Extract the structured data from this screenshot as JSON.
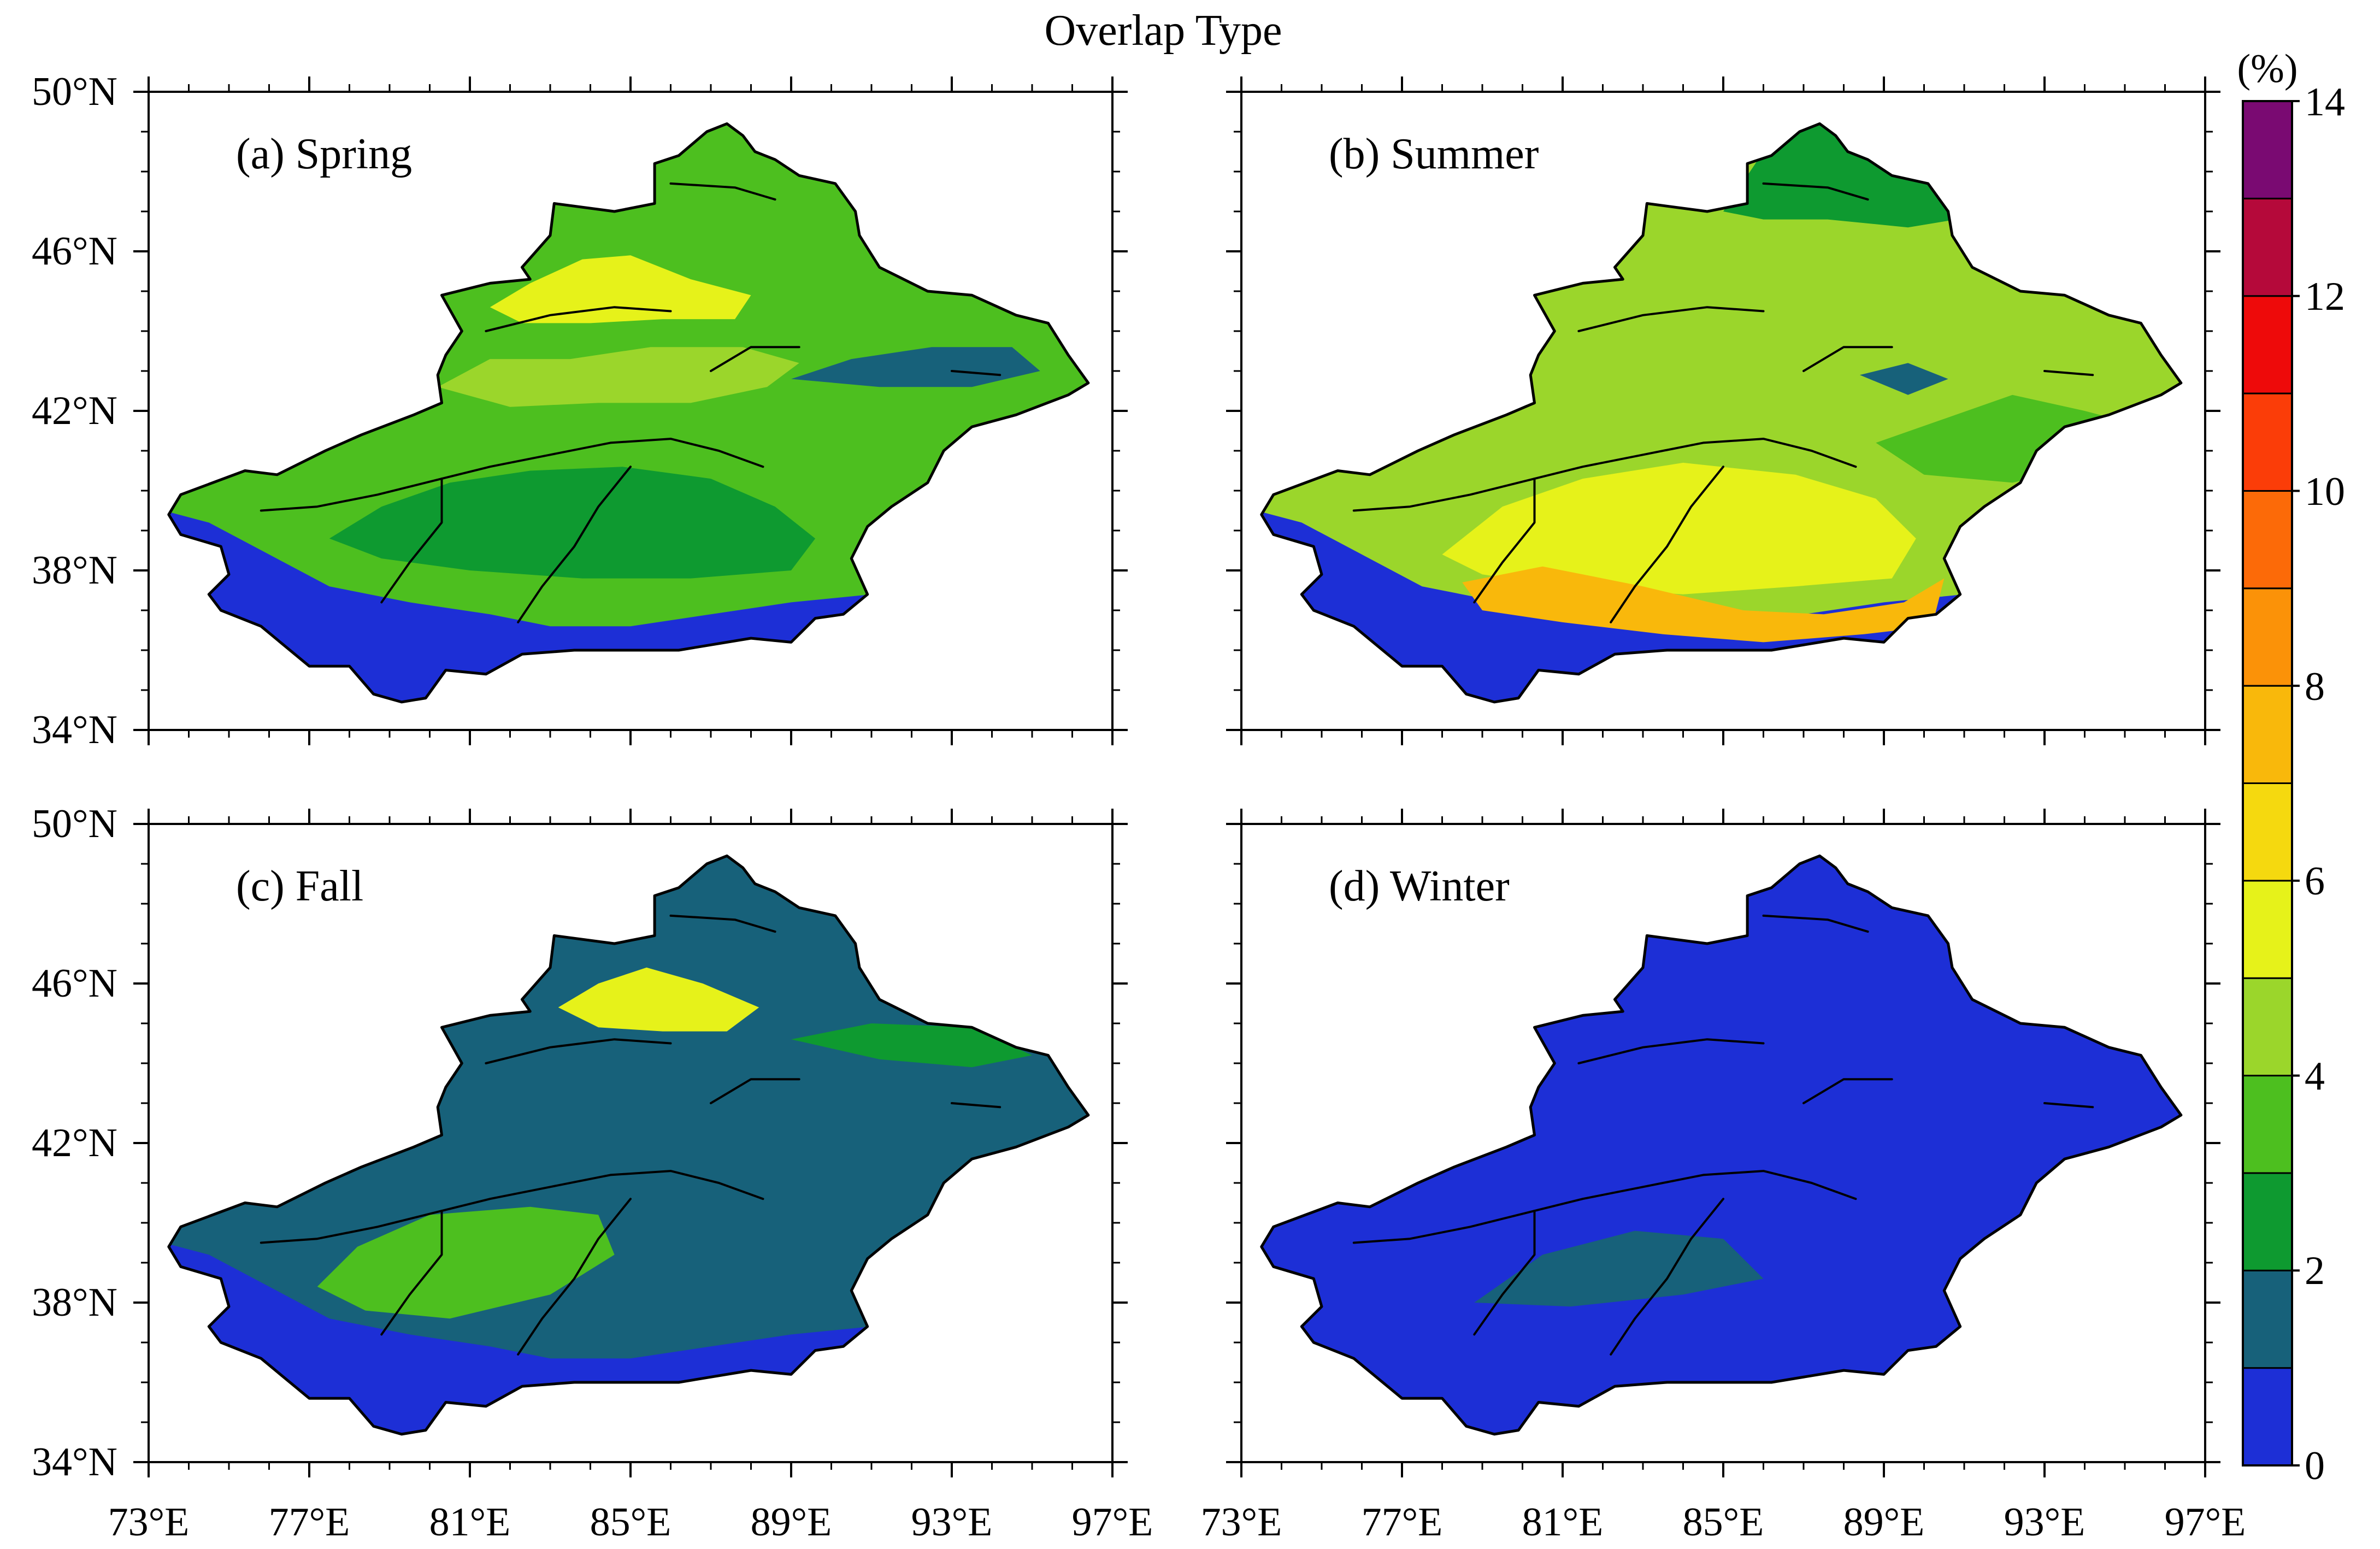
{
  "title": "Overlap Type",
  "panels": [
    {
      "id": "spring",
      "label": "(a) Spring"
    },
    {
      "id": "summer",
      "label": "(b) Summer"
    },
    {
      "id": "fall",
      "label": "(c) Fall"
    },
    {
      "id": "winter",
      "label": "(d) Winter"
    }
  ],
  "axes": {
    "lat_ticks": [
      "50°N",
      "46°N",
      "42°N",
      "38°N",
      "34°N"
    ],
    "lon_ticks": [
      "73°E",
      "77°E",
      "81°E",
      "85°E",
      "89°E",
      "93°E",
      "97°E"
    ]
  },
  "colorbar": {
    "unit": "(%)",
    "tick_labels": [
      "0",
      "2",
      "4",
      "6",
      "8",
      "10",
      "12",
      "14"
    ],
    "levels": [
      0,
      1,
      2,
      3,
      4,
      5,
      6,
      7,
      8,
      9,
      10,
      11,
      12,
      13,
      14
    ],
    "colors": [
      "#1d2fd6",
      "#17617a",
      "#0e9a30",
      "#4dbf1f",
      "#9bd62b",
      "#e6f21a",
      "#f5d90f",
      "#f9b80b",
      "#fb9208",
      "#fc6a08",
      "#fb3d08",
      "#ee0a0a",
      "#b5093a",
      "#7a0a72"
    ]
  },
  "regions": {
    "spring": {
      "base": "#4dbf1f",
      "zones": [
        {
          "name": "south-mountains",
          "color": "#1d2fd6"
        },
        {
          "name": "tarim-basin",
          "color": "#0e9a30"
        },
        {
          "name": "tianshan",
          "color": "#9bd62b"
        },
        {
          "name": "junggar-north",
          "color": "#e6f21a"
        },
        {
          "name": "hami-east",
          "color": "#17617a"
        }
      ]
    },
    "summer": {
      "base": "#9bd62b",
      "zones": [
        {
          "name": "south-mountains",
          "color": "#1d2fd6"
        },
        {
          "name": "taklamakan",
          "color": "#e6f21a"
        },
        {
          "name": "taklamakan-south",
          "color": "#f9b80b"
        },
        {
          "name": "altai",
          "color": "#0e9a30"
        },
        {
          "name": "east",
          "color": "#4dbf1f"
        },
        {
          "name": "turpan",
          "color": "#17617a"
        }
      ]
    },
    "fall": {
      "base": "#17617a",
      "zones": [
        {
          "name": "south-mountains",
          "color": "#1d2fd6"
        },
        {
          "name": "tarim-west",
          "color": "#4dbf1f"
        },
        {
          "name": "junggar",
          "color": "#e6f21a"
        },
        {
          "name": "east-belt",
          "color": "#0e9a30"
        }
      ]
    },
    "winter": {
      "base": "#1d2fd6",
      "zones": [
        {
          "name": "basin-patches",
          "color": "#17617a"
        }
      ]
    }
  }
}
